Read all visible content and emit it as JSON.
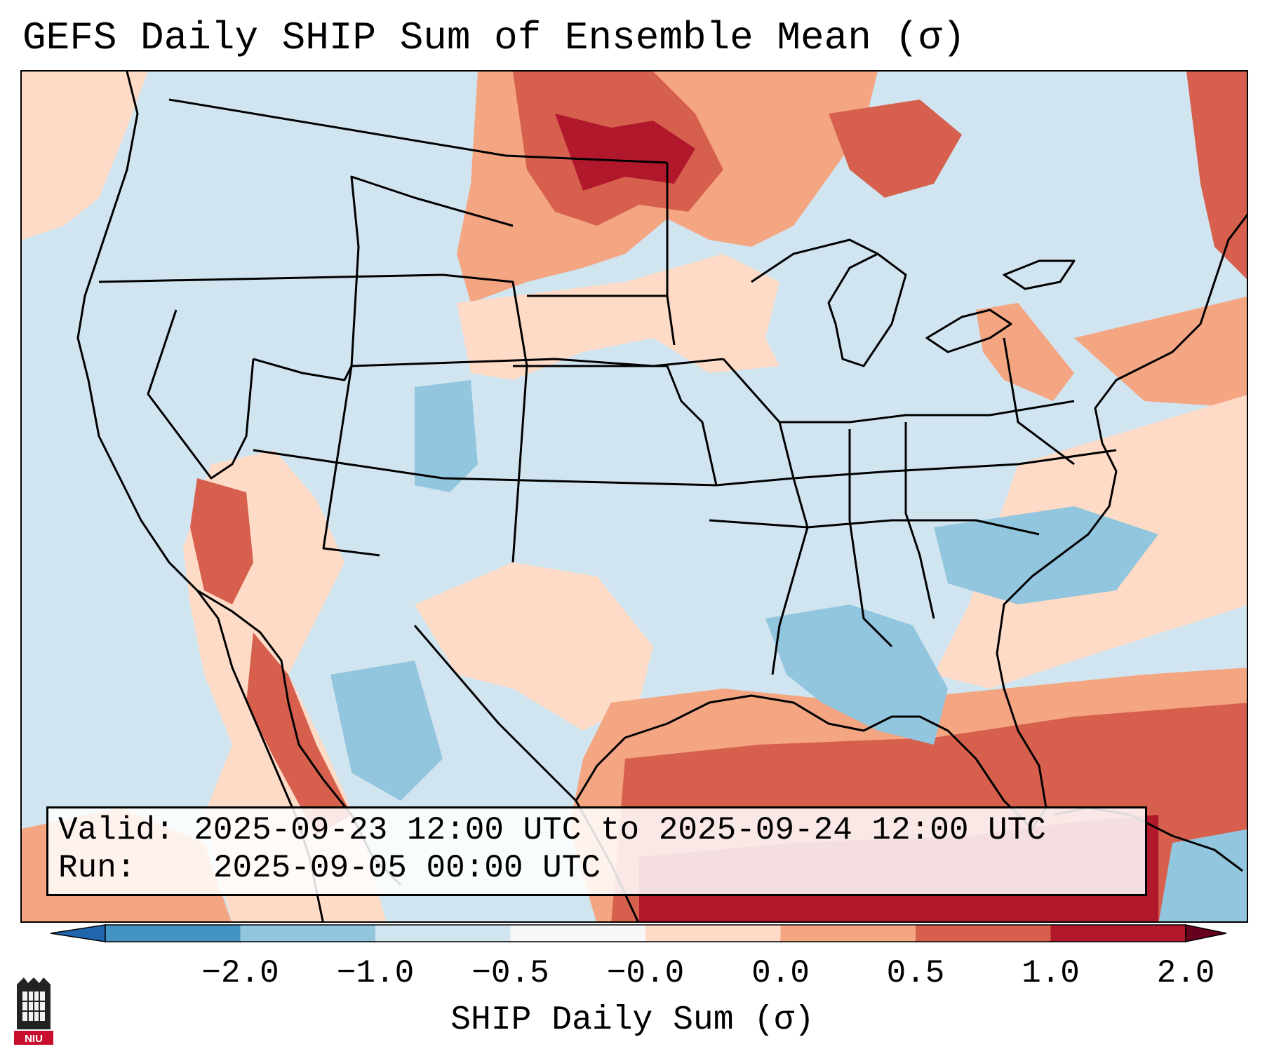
{
  "title": "GEFS Daily SHIP Sum of Ensemble Mean (σ)",
  "info": {
    "valid_label": "Valid:",
    "valid_value": "2025-09-23 12:00 UTC to 2025-09-24 12:00 UTC",
    "run_label": "Run:",
    "run_value": "2025-09-05 00:00 UTC"
  },
  "colorbar": {
    "label": "SHIP Daily Sum (σ)",
    "ticks": [
      "−2.0",
      "−1.0",
      "−0.5",
      "−0.0",
      "0.0",
      "0.5",
      "1.0",
      "2.0"
    ],
    "colors": [
      "#4393c3",
      "#92c5de",
      "#d1e5f0",
      "#f7f7f7",
      "#fddbc7",
      "#f4a582",
      "#d6604d",
      "#b2182b"
    ]
  },
  "logo": {
    "text": "NIU",
    "color": "#c8102e"
  }
}
